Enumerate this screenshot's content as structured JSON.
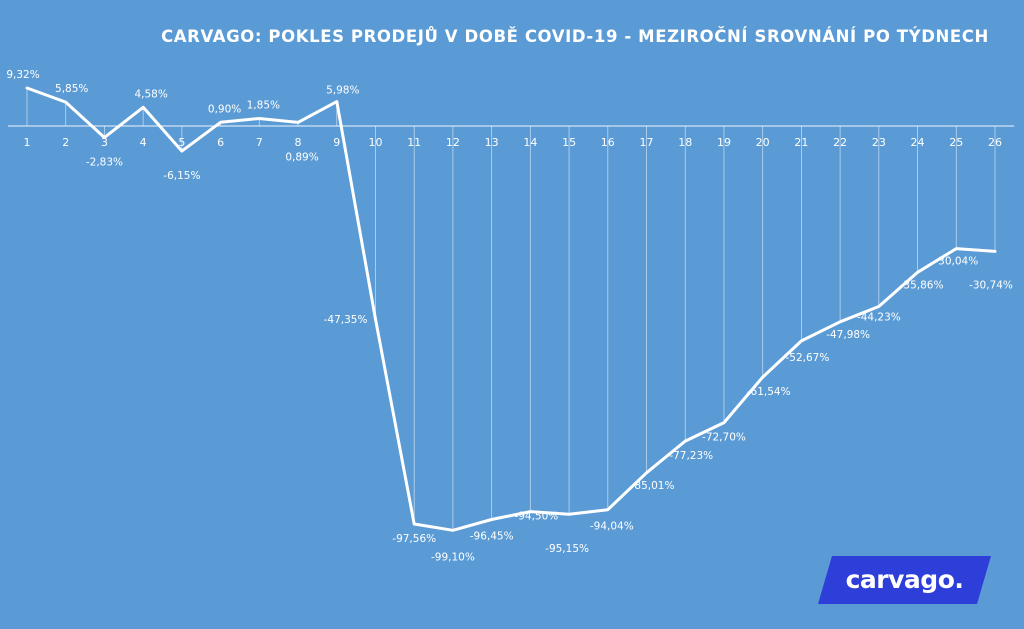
{
  "chart_data": {
    "type": "line",
    "title": "CARVAGO: POKLES PRODEJŮ V DOBĚ COVID-19 - MEZIROČNÍ SROVNÁNÍ PO TÝDNECH",
    "x": [
      1,
      2,
      3,
      4,
      5,
      6,
      7,
      8,
      9,
      10,
      11,
      12,
      13,
      14,
      15,
      16,
      17,
      18,
      19,
      20,
      21,
      22,
      23,
      24,
      25,
      26
    ],
    "categories": [
      "1",
      "2",
      "3",
      "4",
      "5",
      "6",
      "7",
      "8",
      "9",
      "10",
      "11",
      "12",
      "13",
      "14",
      "15",
      "16",
      "17",
      "18",
      "19",
      "20",
      "21",
      "22",
      "23",
      "24",
      "25",
      "26"
    ],
    "values": [
      9.32,
      5.85,
      -2.83,
      4.58,
      -6.15,
      0.9,
      1.85,
      0.89,
      5.98,
      -47.35,
      -97.56,
      -99.1,
      -96.45,
      -94.5,
      -95.15,
      -94.04,
      -85.01,
      -77.23,
      -72.7,
      -61.54,
      -52.67,
      -47.98,
      -44.23,
      -35.86,
      -30.04,
      -30.74
    ],
    "labels": [
      "9,32%",
      "5,85%",
      "-2,83%",
      "4,58%",
      "-6,15%",
      "0,90%",
      "1,85%",
      "0,89%",
      "5,98%",
      "-47,35%",
      "-97,56%",
      "-99,10%",
      "-96,45%",
      "-94,50%",
      "-95,15%",
      "-94,04%",
      "-85,01%",
      "-77,23%",
      "-72,70%",
      "-61,54%",
      "-52,67%",
      "-47,98%",
      "-44,23%",
      "-35,86%",
      "-30,04%",
      "-30,74%"
    ],
    "ylim": [
      -100,
      10
    ],
    "grid": false,
    "colors": {
      "background": "#5b9bd5",
      "line": "#ffffff",
      "logo_background": "#2e3ed8"
    }
  },
  "logo": {
    "text": "carvago."
  }
}
